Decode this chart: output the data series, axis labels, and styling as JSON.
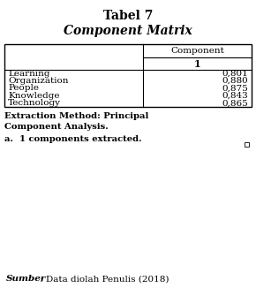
{
  "title_line1": "Tabel 7",
  "title_line2": "Component Matrix",
  "col_header1": "Component",
  "col_header2": "1",
  "rows": [
    [
      "Learning",
      "0,801"
    ],
    [
      "Organization",
      "0,880"
    ],
    [
      "People",
      "0,875"
    ],
    [
      "Knowledge",
      "0,843"
    ],
    [
      "Technology",
      "0,865"
    ]
  ],
  "footnote1": "Extraction Method: Principal",
  "footnote2": "Component Analysis.",
  "footnote3": "a.  1 components extracted.",
  "source_italic": "Sumber",
  "source_normal": " : Data diolah Penulis (2018)",
  "bg_color": "#ffffff",
  "text_color": "#000000",
  "border_color": "#000000"
}
